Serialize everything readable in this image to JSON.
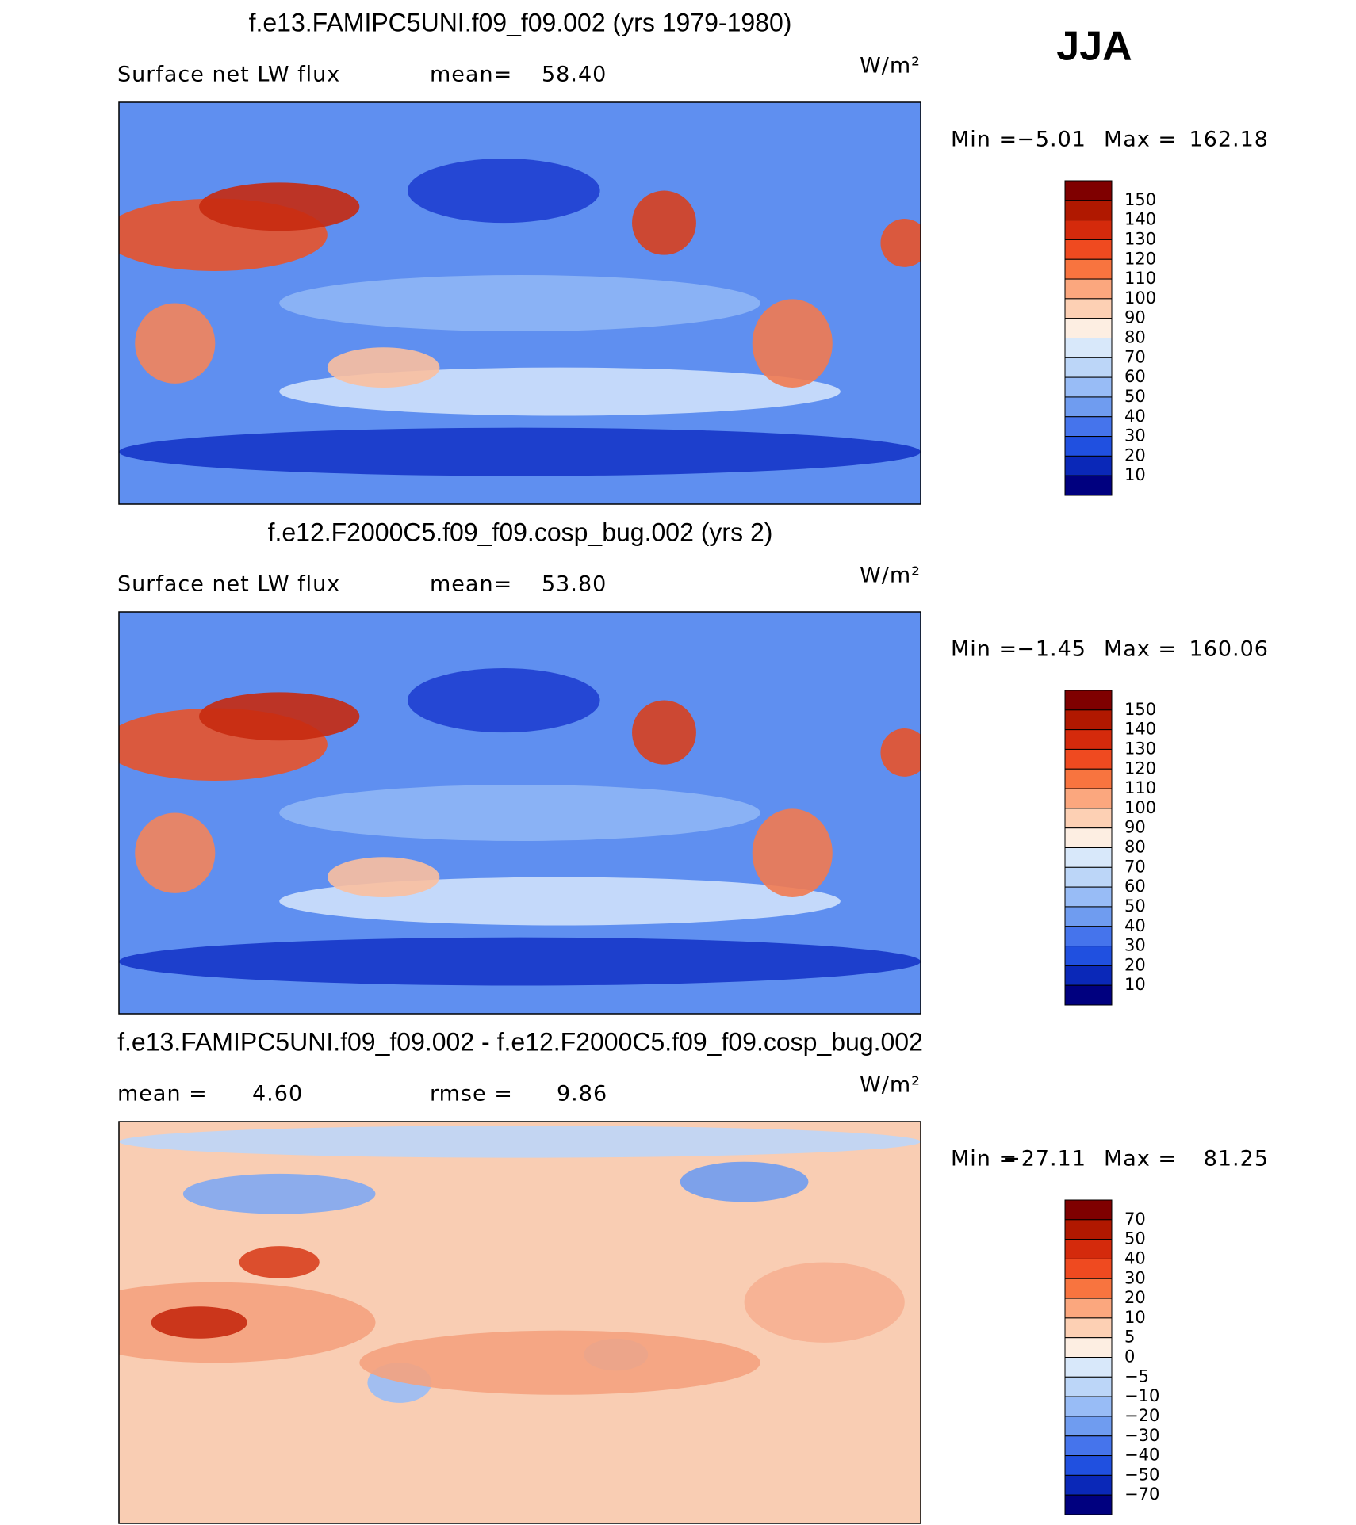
{
  "season": "JJA",
  "panels": [
    {
      "title": "f.e13.FAMIPC5UNI.f09_f09.002 (yrs 1979-1980)",
      "left_label": "Surface net LW flux",
      "stat1_label": "mean=",
      "stat1": "58.40",
      "units": "W/m²",
      "min_label": "Min =",
      "min": "−5.01",
      "max_label": "Max =",
      "max": "162.18",
      "colorbar": {
        "labels": [
          "150",
          "140",
          "130",
          "120",
          "110",
          "100",
          "90",
          "80",
          "70",
          "60",
          "50",
          "40",
          "30",
          "20",
          "10"
        ],
        "colors": [
          "#7f0000",
          "#b01800",
          "#d42a0c",
          "#ef4a20",
          "#f8743f",
          "#fba77e",
          "#fdd0b4",
          "#fdeee2",
          "#d8e8fa",
          "#bcd6f8",
          "#98bcf6",
          "#6f9cf0",
          "#4574ec",
          "#2050e0",
          "#0a28b8",
          "#00007f"
        ]
      }
    },
    {
      "title": "f.e12.F2000C5.f09_f09.cosp_bug.002 (yrs 2)",
      "left_label": "Surface net LW flux",
      "stat1_label": "mean=",
      "stat1": "53.80",
      "units": "W/m²",
      "min_label": "Min =",
      "min": "−1.45",
      "max_label": "Max =",
      "max": "160.06",
      "colorbar": {
        "labels": [
          "150",
          "140",
          "130",
          "120",
          "110",
          "100",
          "90",
          "80",
          "70",
          "60",
          "50",
          "40",
          "30",
          "20",
          "10"
        ],
        "colors": [
          "#7f0000",
          "#b01800",
          "#d42a0c",
          "#ef4a20",
          "#f8743f",
          "#fba77e",
          "#fdd0b4",
          "#fdeee2",
          "#d8e8fa",
          "#bcd6f8",
          "#98bcf6",
          "#6f9cf0",
          "#4574ec",
          "#2050e0",
          "#0a28b8",
          "#00007f"
        ]
      }
    },
    {
      "title": "f.e13.FAMIPC5UNI.f09_f09.002 - f.e12.F2000C5.f09_f09.cosp_bug.002",
      "left_label": "mean =",
      "left_value": "4.60",
      "stat1_label": "rmse =",
      "stat1": "9.86",
      "units": "W/m²",
      "min_label": "Min =",
      "min": "−27.11",
      "max_label": "Max =",
      "max": "81.25",
      "colorbar": {
        "labels": [
          "70",
          "50",
          "40",
          "30",
          "20",
          "10",
          "5",
          "0",
          "−5",
          "−10",
          "−20",
          "−30",
          "−40",
          "−50",
          "−70"
        ],
        "colors": [
          "#7f0000",
          "#b01800",
          "#d42a0c",
          "#ef4a20",
          "#f8743f",
          "#fba77e",
          "#fdd0b4",
          "#fdeee2",
          "#d8e8fa",
          "#bcd6f8",
          "#98bcf6",
          "#6f9cf0",
          "#4574ec",
          "#2050e0",
          "#0a28b8",
          "#00007f"
        ]
      }
    }
  ]
}
